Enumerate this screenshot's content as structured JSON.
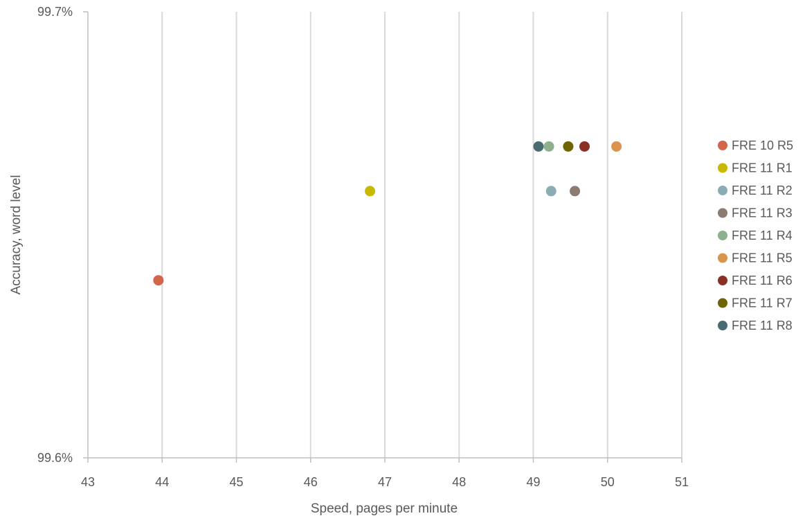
{
  "chart_data": {
    "type": "scatter",
    "title": "",
    "xlabel": "Speed, pages per minute",
    "ylabel": "Accuracy, word level",
    "xlim": [
      43,
      51
    ],
    "ylim": [
      99.6,
      99.7
    ],
    "x_ticks": [
      "43",
      "44",
      "45",
      "46",
      "47",
      "48",
      "49",
      "50",
      "51"
    ],
    "y_ticks": [
      {
        "value": 99.6,
        "label": "99.6%"
      },
      {
        "value": 99.7,
        "label": "99.7%"
      }
    ],
    "grid": {
      "vertical": true,
      "horizontal": false
    },
    "legend_position": "right",
    "series": [
      {
        "name": "FRE 10 R5",
        "color": "#d4644a",
        "points": [
          {
            "x": 43.95,
            "y": 99.6398
          }
        ]
      },
      {
        "name": "FRE 11 R1",
        "color": "#c9b800",
        "points": [
          {
            "x": 46.8,
            "y": 99.6598
          }
        ]
      },
      {
        "name": "FRE 11 R2",
        "color": "#8aadb3",
        "points": [
          {
            "x": 49.24,
            "y": 99.6598
          }
        ]
      },
      {
        "name": "FRE 11 R3",
        "color": "#8c7b70",
        "points": [
          {
            "x": 49.56,
            "y": 99.6598
          }
        ]
      },
      {
        "name": "FRE 11 R4",
        "color": "#8fb08c",
        "points": [
          {
            "x": 49.21,
            "y": 99.6698
          }
        ]
      },
      {
        "name": "FRE 11 R5",
        "color": "#d9934a",
        "points": [
          {
            "x": 50.12,
            "y": 99.6698
          }
        ]
      },
      {
        "name": "FRE 11 R6",
        "color": "#8b2e24",
        "points": [
          {
            "x": 49.69,
            "y": 99.6698
          }
        ]
      },
      {
        "name": "FRE 11 R7",
        "color": "#6e6400",
        "points": [
          {
            "x": 49.47,
            "y": 99.6698
          }
        ]
      },
      {
        "name": "FRE 11 R8",
        "color": "#4b6b72",
        "points": [
          {
            "x": 49.07,
            "y": 99.6698
          }
        ]
      }
    ]
  }
}
